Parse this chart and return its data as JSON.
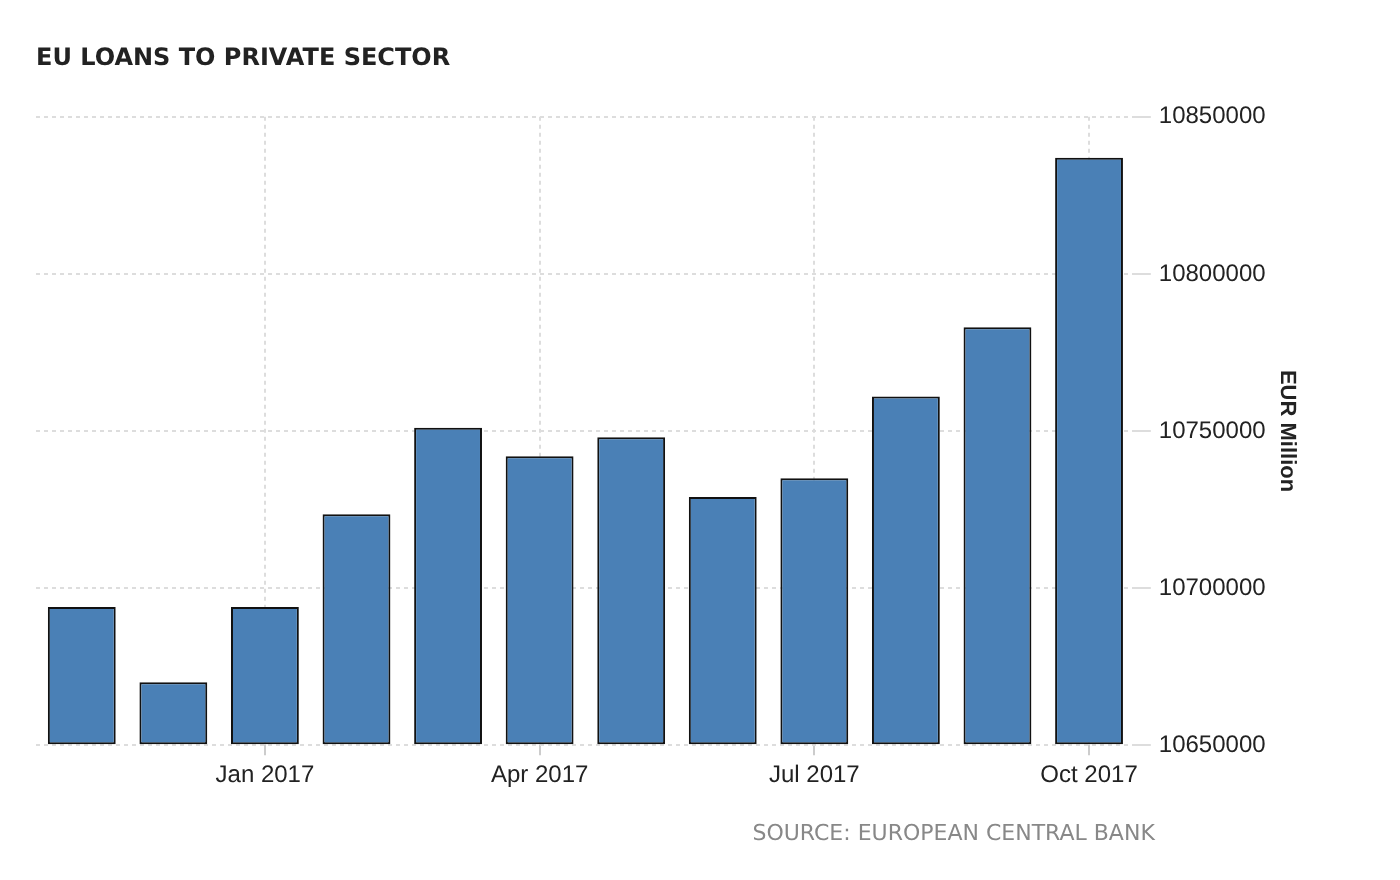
{
  "chart_data": {
    "type": "bar",
    "title": "EU LOANS TO PRIVATE SECTOR",
    "ylabel": "EUR Million",
    "categories": [
      null,
      null,
      "Jan 2017",
      null,
      null,
      "Apr 2017",
      null,
      null,
      "Jul 2017",
      null,
      null,
      "Oct 2017"
    ],
    "values": [
      10694000,
      10670000,
      10694000,
      10723500,
      10751000,
      10742000,
      10748000,
      10729000,
      10735000,
      10761000,
      10783000,
      10837000
    ],
    "color": "#4a80b6",
    "ylim": [
      10650000,
      10850000
    ],
    "yticks": [
      10650000,
      10700000,
      10750000,
      10800000,
      10850000
    ],
    "grid": true,
    "annotations": [
      "SOURCE: EUROPEAN CENTRAL BANK"
    ]
  }
}
